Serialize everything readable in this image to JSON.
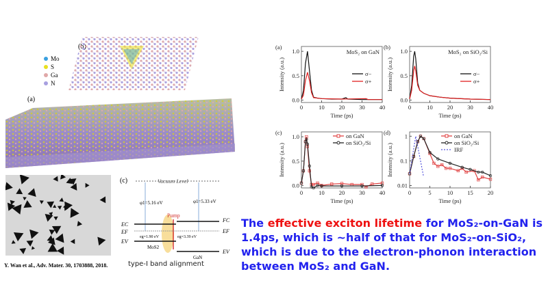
{
  "left": {
    "lattice_label": "(b)",
    "surface_label": "(a)",
    "legend": [
      {
        "label": "Mo",
        "color": "#3aa0e0"
      },
      {
        "label": "S",
        "color": "#e8e020"
      },
      {
        "label": "Ga",
        "color": "#e0a8a8"
      },
      {
        "label": "N",
        "color": "#a8a0e0"
      }
    ],
    "band": {
      "label": "(c)",
      "vacuum": "Vacuum Level",
      "phi1": "φ1=5.16 eV",
      "phi2": "φ1=5.33 eV",
      "pump": "Pump",
      "eg1": "eg=1.90 eV",
      "eg2": "eg=3.39 eV",
      "ec": "EC",
      "ef": "EF",
      "ev": "EV",
      "fc": "FC",
      "ef_r": "EF",
      "ev_r": "EV",
      "mos2": "MoS2",
      "gan": "GaN",
      "caption": "type-I band alignment"
    },
    "citation": "Y. Wan et al., Adv. Mater. 30, 1703888, 2018."
  },
  "claim": {
    "p1": "The ",
    "highlight": "effective exciton lifetime",
    "p2": " for MoS₂-on-GaN is 1.4ps, which is ~half of that for MoS₂-on-SiO₂, which is due to the electron-phonon interaction between MoS₂ and GaN."
  },
  "chart_data": [
    {
      "type": "line",
      "panel": "(a)",
      "title": "MoS₂ on GaN",
      "xlabel": "Time (ps)",
      "ylabel": "Intensity (a.u.)",
      "xlim": [
        0,
        40
      ],
      "ylim": [
        -0.05,
        1.1
      ],
      "xticks": [
        0,
        10,
        20,
        30,
        40
      ],
      "yticks": [
        0.0,
        0.5,
        1.0
      ],
      "scale": "linear",
      "legend": "right",
      "series": [
        {
          "name": "σ−",
          "color": "#111111",
          "marker": "none",
          "points": [
            [
              0,
              0.02
            ],
            [
              1,
              0.2
            ],
            [
              2,
              0.75
            ],
            [
              3,
              1.0
            ],
            [
              4,
              0.6
            ],
            [
              5,
              0.2
            ],
            [
              6,
              0.06
            ],
            [
              8,
              0.04
            ],
            [
              10,
              0.03
            ],
            [
              15,
              0.02
            ],
            [
              20,
              0.02
            ],
            [
              22,
              0.05
            ],
            [
              23,
              0.02
            ],
            [
              30,
              0.01
            ],
            [
              40,
              0.01
            ]
          ]
        },
        {
          "name": "σ+",
          "color": "#e02020",
          "marker": "none",
          "points": [
            [
              0,
              0.02
            ],
            [
              1,
              0.1
            ],
            [
              2,
              0.4
            ],
            [
              3,
              0.57
            ],
            [
              4,
              0.4
            ],
            [
              5,
              0.15
            ],
            [
              6,
              0.05
            ],
            [
              10,
              0.03
            ],
            [
              20,
              0.02
            ],
            [
              32,
              0.03
            ],
            [
              33,
              0.01
            ],
            [
              40,
              0.01
            ]
          ]
        }
      ]
    },
    {
      "type": "line",
      "panel": "(b)",
      "title": "MoS₂ on SiO₂/Si",
      "xlabel": "Time (ps)",
      "ylabel": "Intensity (a.u.)",
      "xlim": [
        0,
        40
      ],
      "ylim": [
        -0.05,
        1.1
      ],
      "xticks": [
        0,
        10,
        20,
        30,
        40
      ],
      "yticks": [
        0.0,
        0.5,
        1.0
      ],
      "scale": "linear",
      "legend": "right",
      "series": [
        {
          "name": "σ−",
          "color": "#111111",
          "marker": "none",
          "points": [
            [
              0,
              0.02
            ],
            [
              1,
              0.3
            ],
            [
              2,
              0.9
            ],
            [
              2.5,
              1.0
            ],
            [
              3,
              0.85
            ],
            [
              4,
              0.35
            ],
            [
              5,
              0.2
            ],
            [
              7,
              0.14
            ],
            [
              10,
              0.09
            ],
            [
              15,
              0.06
            ],
            [
              20,
              0.04
            ],
            [
              30,
              0.02
            ],
            [
              40,
              0.01
            ]
          ]
        },
        {
          "name": "σ+",
          "color": "#e02020",
          "marker": "none",
          "points": [
            [
              0,
              0.02
            ],
            [
              1,
              0.2
            ],
            [
              2,
              0.6
            ],
            [
              2.5,
              0.7
            ],
            [
              3,
              0.6
            ],
            [
              4,
              0.3
            ],
            [
              5,
              0.2
            ],
            [
              7,
              0.14
            ],
            [
              10,
              0.09
            ],
            [
              15,
              0.06
            ],
            [
              20,
              0.04
            ],
            [
              30,
              0.02
            ],
            [
              40,
              0.01
            ]
          ]
        }
      ]
    },
    {
      "type": "line",
      "panel": "(c)",
      "title": "",
      "xlabel": "Time (ps)",
      "ylabel": "Intensity (a.u.)",
      "xlim": [
        0,
        40
      ],
      "ylim": [
        -0.05,
        1.1
      ],
      "xticks": [
        0,
        10,
        20,
        30,
        40
      ],
      "yticks": [
        0.0,
        0.5,
        1.0
      ],
      "scale": "linear",
      "legend": "top-right",
      "series": [
        {
          "name": "on GaN",
          "color": "#e04040",
          "marker": "square",
          "points": [
            [
              0,
              0.05
            ],
            [
              1,
              0.3
            ],
            [
              2,
              0.9
            ],
            [
              2.5,
              1.0
            ],
            [
              3,
              0.8
            ],
            [
              4,
              0.3
            ],
            [
              5,
              0.02
            ],
            [
              6,
              0.02
            ],
            [
              8,
              0.05
            ],
            [
              10,
              0.0
            ],
            [
              15,
              0.03
            ],
            [
              20,
              0.04
            ],
            [
              25,
              0.02
            ],
            [
              30,
              0.02
            ],
            [
              32,
              -0.03
            ],
            [
              35,
              0.03
            ],
            [
              40,
              0.05
            ]
          ]
        },
        {
          "name": "on SiO₂/Si",
          "color": "#222222",
          "marker": "circle",
          "points": [
            [
              0,
              0.05
            ],
            [
              1,
              0.3
            ],
            [
              2,
              0.9
            ],
            [
              2.5,
              0.95
            ],
            [
              3,
              0.85
            ],
            [
              4,
              0.4
            ],
            [
              5,
              -0.03
            ],
            [
              6,
              -0.05
            ],
            [
              8,
              0.0
            ],
            [
              10,
              -0.01
            ],
            [
              20,
              -0.01
            ],
            [
              30,
              -0.01
            ],
            [
              40,
              0.0
            ]
          ]
        }
      ]
    },
    {
      "type": "line",
      "panel": "(d)",
      "title": "",
      "xlabel": "Time (ps)",
      "ylabel": "Intensity (a.u.)",
      "xlim": [
        0,
        20
      ],
      "ylim": [
        0.008,
        1.5
      ],
      "xticks": [
        0,
        5,
        10,
        15,
        20
      ],
      "yticks": [
        0.01,
        0.1,
        1
      ],
      "scale": "log",
      "legend": "top-right",
      "series": [
        {
          "name": "on GaN",
          "color": "#e04040",
          "marker": "square",
          "points": [
            [
              0,
              0.03
            ],
            [
              1,
              0.15
            ],
            [
              2,
              0.6
            ],
            [
              2.7,
              1.0
            ],
            [
              3.5,
              0.8
            ],
            [
              5,
              0.2
            ],
            [
              6,
              0.08
            ],
            [
              7,
              0.06
            ],
            [
              8,
              0.07
            ],
            [
              9,
              0.05
            ],
            [
              10,
              0.05
            ],
            [
              12,
              0.04
            ],
            [
              13,
              0.05
            ],
            [
              14,
              0.035
            ],
            [
              16,
              0.04
            ],
            [
              17,
              0.017
            ],
            [
              18,
              0.022
            ],
            [
              20,
              0.018
            ]
          ]
        },
        {
          "name": "on SiO₂/Si",
          "color": "#222222",
          "marker": "circle",
          "points": [
            [
              0,
              0.03
            ],
            [
              1,
              0.15
            ],
            [
              2,
              0.6
            ],
            [
              2.7,
              1.0
            ],
            [
              3.5,
              0.8
            ],
            [
              5,
              0.22
            ],
            [
              7,
              0.12
            ],
            [
              10,
              0.08
            ],
            [
              13,
              0.055
            ],
            [
              15,
              0.045
            ],
            [
              17,
              0.035
            ],
            [
              18,
              0.035
            ],
            [
              20,
              0.025
            ]
          ]
        },
        {
          "name": "IRF",
          "color": "#5555dd",
          "marker": "dash",
          "points": [
            [
              0,
              0.03
            ],
            [
              1.5,
              1.0
            ],
            [
              3.4,
              0.025
            ]
          ]
        }
      ]
    }
  ]
}
